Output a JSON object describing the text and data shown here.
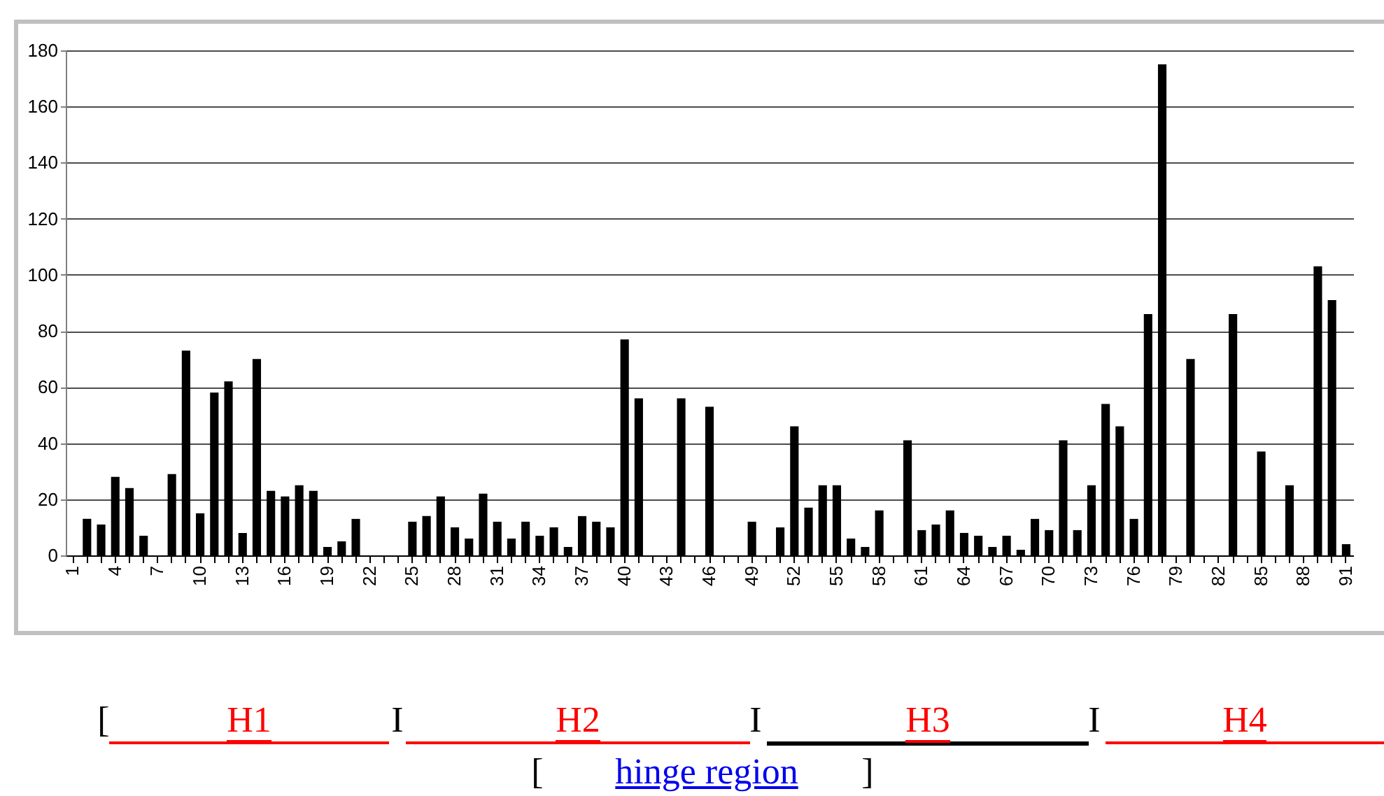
{
  "chart_data": {
    "type": "bar",
    "categories": [
      "1",
      null,
      null,
      "4",
      null,
      null,
      "7",
      null,
      null,
      "10",
      null,
      null,
      "13",
      null,
      null,
      "16",
      null,
      null,
      "19",
      null,
      null,
      "22",
      null,
      null,
      "25",
      null,
      null,
      "28",
      null,
      null,
      "31",
      null,
      null,
      "34",
      null,
      null,
      "37",
      null,
      null,
      "40",
      null,
      null,
      "43",
      null,
      null,
      "46",
      null,
      null,
      "49",
      null,
      null,
      "52",
      null,
      null,
      "55",
      null,
      null,
      "58",
      null,
      null,
      "61",
      null,
      null,
      "64",
      null,
      null,
      "67",
      null,
      null,
      "70",
      null,
      null,
      "73",
      null,
      null,
      "76",
      null,
      null,
      "79",
      null,
      null,
      "82",
      null,
      null,
      "85",
      null,
      null,
      "88",
      null,
      null,
      "91"
    ],
    "values": [
      null,
      13,
      11,
      28,
      24,
      7,
      null,
      29,
      73,
      15,
      58,
      62,
      8,
      70,
      23,
      21,
      25,
      23,
      3,
      5,
      13,
      null,
      null,
      null,
      12,
      14,
      21,
      10,
      6,
      22,
      12,
      6,
      12,
      7,
      10,
      3,
      14,
      12,
      10,
      77,
      56,
      null,
      null,
      56,
      null,
      53,
      null,
      null,
      12,
      null,
      10,
      46,
      17,
      25,
      25,
      6,
      3,
      16,
      null,
      41,
      9,
      11,
      16,
      8,
      7,
      3,
      7,
      2,
      13,
      9,
      41,
      9,
      25,
      54,
      46,
      13,
      86,
      175,
      null,
      70,
      null,
      null,
      86,
      null,
      37,
      null,
      25,
      null,
      103,
      91,
      4
    ],
    "color": "#000000",
    "ylim": [
      0,
      180
    ],
    "yticks": [
      0,
      20,
      40,
      60,
      80,
      100,
      120,
      140,
      160,
      180
    ],
    "grid": true,
    "annotations": [
      "[",
      "H1",
      "I",
      "H2",
      "I",
      "H3",
      "I",
      "H4",
      "[",
      "hinge region",
      "]"
    ]
  }
}
